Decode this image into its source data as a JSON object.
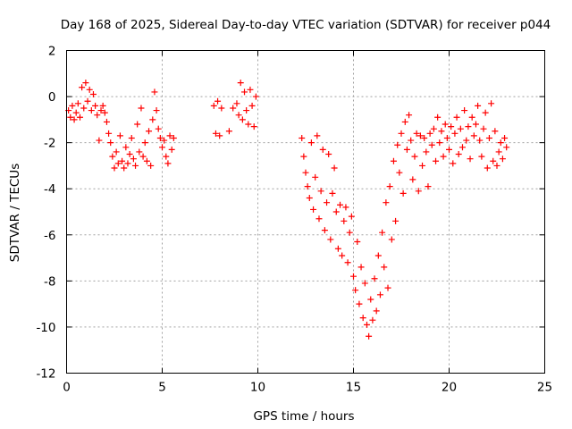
{
  "chart_data": {
    "type": "scatter",
    "title": "Day 168 of 2025, Sidereal Day-to-day VTEC variation (SDTVAR) for receiver p044",
    "xlabel": "GPS time / hours",
    "ylabel": "SDTVAR / TECUs",
    "xlim": [
      0,
      25
    ],
    "ylim": [
      -12,
      2
    ],
    "xticks": [
      0,
      5,
      10,
      15,
      20,
      25
    ],
    "yticks": [
      -12,
      -10,
      -8,
      -6,
      -4,
      -2,
      0,
      2
    ],
    "grid": true,
    "marker": "+",
    "series": [
      {
        "color": "#ff0000",
        "points": [
          [
            0.1,
            -0.6
          ],
          [
            0.2,
            -0.9
          ],
          [
            0.3,
            -0.4
          ],
          [
            0.4,
            -1.0
          ],
          [
            0.5,
            -0.7
          ],
          [
            0.6,
            -0.3
          ],
          [
            0.7,
            -0.9
          ],
          [
            0.8,
            0.4
          ],
          [
            0.9,
            -0.5
          ],
          [
            1.0,
            0.6
          ],
          [
            1.1,
            -0.2
          ],
          [
            1.2,
            0.3
          ],
          [
            1.3,
            -0.6
          ],
          [
            1.4,
            0.1
          ],
          [
            1.5,
            -0.4
          ],
          [
            1.6,
            -0.8
          ],
          [
            1.7,
            -1.9
          ],
          [
            1.8,
            -0.6
          ],
          [
            1.9,
            -0.4
          ],
          [
            2.0,
            -0.7
          ],
          [
            2.1,
            -1.1
          ],
          [
            2.2,
            -1.6
          ],
          [
            2.3,
            -2.0
          ],
          [
            2.4,
            -2.6
          ],
          [
            2.5,
            -3.1
          ],
          [
            2.6,
            -2.4
          ],
          [
            2.7,
            -2.9
          ],
          [
            2.8,
            -1.7
          ],
          [
            2.9,
            -2.8
          ],
          [
            3.0,
            -3.1
          ],
          [
            3.1,
            -2.2
          ],
          [
            3.2,
            -2.9
          ],
          [
            3.3,
            -2.5
          ],
          [
            3.4,
            -1.8
          ],
          [
            3.5,
            -2.7
          ],
          [
            3.6,
            -3.0
          ],
          [
            3.7,
            -1.2
          ],
          [
            3.8,
            -2.4
          ],
          [
            3.9,
            -0.5
          ],
          [
            4.0,
            -2.6
          ],
          [
            4.1,
            -2.0
          ],
          [
            4.2,
            -2.8
          ],
          [
            4.3,
            -1.5
          ],
          [
            4.4,
            -3.0
          ],
          [
            4.5,
            -1.0
          ],
          [
            4.6,
            0.2
          ],
          [
            4.7,
            -0.6
          ],
          [
            4.8,
            -1.4
          ],
          [
            4.9,
            -1.8
          ],
          [
            5.0,
            -2.2
          ],
          [
            5.1,
            -1.9
          ],
          [
            5.2,
            -2.6
          ],
          [
            5.3,
            -2.9
          ],
          [
            5.4,
            -1.7
          ],
          [
            5.5,
            -2.3
          ],
          [
            5.6,
            -1.8
          ],
          [
            7.7,
            -0.4
          ],
          [
            7.8,
            -1.6
          ],
          [
            7.9,
            -0.2
          ],
          [
            8.0,
            -1.7
          ],
          [
            8.1,
            -0.5
          ],
          [
            8.5,
            -1.5
          ],
          [
            8.7,
            -0.5
          ],
          [
            8.9,
            -0.3
          ],
          [
            9.0,
            -0.8
          ],
          [
            9.1,
            0.6
          ],
          [
            9.2,
            -1.0
          ],
          [
            9.3,
            0.2
          ],
          [
            9.4,
            -0.6
          ],
          [
            9.5,
            -1.2
          ],
          [
            9.6,
            0.3
          ],
          [
            9.7,
            -0.4
          ],
          [
            9.8,
            -1.3
          ],
          [
            9.9,
            0.0
          ],
          [
            12.3,
            -1.8
          ],
          [
            12.4,
            -2.6
          ],
          [
            12.5,
            -3.3
          ],
          [
            12.6,
            -3.9
          ],
          [
            12.7,
            -4.4
          ],
          [
            12.8,
            -2.0
          ],
          [
            12.9,
            -4.9
          ],
          [
            13.0,
            -3.5
          ],
          [
            13.1,
            -1.7
          ],
          [
            13.2,
            -5.3
          ],
          [
            13.3,
            -4.1
          ],
          [
            13.4,
            -2.3
          ],
          [
            13.5,
            -5.8
          ],
          [
            13.6,
            -4.6
          ],
          [
            13.7,
            -2.5
          ],
          [
            13.8,
            -6.2
          ],
          [
            13.9,
            -4.2
          ],
          [
            14.0,
            -3.1
          ],
          [
            14.1,
            -5.0
          ],
          [
            14.2,
            -6.6
          ],
          [
            14.3,
            -4.7
          ],
          [
            14.4,
            -6.9
          ],
          [
            14.5,
            -5.4
          ],
          [
            14.6,
            -4.8
          ],
          [
            14.7,
            -7.2
          ],
          [
            14.8,
            -5.9
          ],
          [
            14.9,
            -5.2
          ],
          [
            15.0,
            -7.8
          ],
          [
            15.1,
            -8.4
          ],
          [
            15.2,
            -6.3
          ],
          [
            15.3,
            -9.0
          ],
          [
            15.4,
            -7.4
          ],
          [
            15.5,
            -9.6
          ],
          [
            15.6,
            -8.1
          ],
          [
            15.7,
            -9.9
          ],
          [
            15.8,
            -10.4
          ],
          [
            15.9,
            -8.8
          ],
          [
            16.0,
            -9.7
          ],
          [
            16.1,
            -7.9
          ],
          [
            16.2,
            -9.3
          ],
          [
            16.3,
            -6.9
          ],
          [
            16.4,
            -8.6
          ],
          [
            16.5,
            -5.9
          ],
          [
            16.6,
            -7.4
          ],
          [
            16.7,
            -4.6
          ],
          [
            16.8,
            -8.3
          ],
          [
            16.9,
            -3.9
          ],
          [
            17.0,
            -6.2
          ],
          [
            17.1,
            -2.8
          ],
          [
            17.2,
            -5.4
          ],
          [
            17.3,
            -2.1
          ],
          [
            17.4,
            -3.3
          ],
          [
            17.5,
            -1.6
          ],
          [
            17.6,
            -4.2
          ],
          [
            17.7,
            -1.1
          ],
          [
            17.8,
            -2.3
          ],
          [
            17.9,
            -0.8
          ],
          [
            18.0,
            -1.9
          ],
          [
            18.1,
            -3.6
          ],
          [
            18.2,
            -2.6
          ],
          [
            18.3,
            -1.6
          ],
          [
            18.4,
            -4.1
          ],
          [
            18.5,
            -1.7
          ],
          [
            18.6,
            -3.0
          ],
          [
            18.7,
            -1.8
          ],
          [
            18.8,
            -2.4
          ],
          [
            18.9,
            -3.9
          ],
          [
            19.0,
            -1.6
          ],
          [
            19.1,
            -2.1
          ],
          [
            19.2,
            -1.4
          ],
          [
            19.3,
            -2.8
          ],
          [
            19.4,
            -0.9
          ],
          [
            19.5,
            -2.0
          ],
          [
            19.6,
            -1.5
          ],
          [
            19.7,
            -2.6
          ],
          [
            19.8,
            -1.2
          ],
          [
            19.9,
            -1.8
          ],
          [
            20.0,
            -2.3
          ],
          [
            20.1,
            -1.3
          ],
          [
            20.2,
            -2.9
          ],
          [
            20.3,
            -1.6
          ],
          [
            20.4,
            -0.9
          ],
          [
            20.5,
            -2.5
          ],
          [
            20.6,
            -1.4
          ],
          [
            20.7,
            -2.2
          ],
          [
            20.8,
            -0.6
          ],
          [
            20.9,
            -1.9
          ],
          [
            21.0,
            -1.3
          ],
          [
            21.1,
            -2.7
          ],
          [
            21.2,
            -0.9
          ],
          [
            21.3,
            -1.7
          ],
          [
            21.4,
            -1.2
          ],
          [
            21.5,
            -0.4
          ],
          [
            21.6,
            -1.9
          ],
          [
            21.7,
            -2.6
          ],
          [
            21.8,
            -1.4
          ],
          [
            21.9,
            -0.7
          ],
          [
            22.0,
            -3.1
          ],
          [
            22.1,
            -1.8
          ],
          [
            22.2,
            -0.3
          ],
          [
            22.3,
            -2.8
          ],
          [
            22.4,
            -1.5
          ],
          [
            22.5,
            -3.0
          ],
          [
            22.6,
            -2.4
          ],
          [
            22.7,
            -2.0
          ],
          [
            22.8,
            -2.7
          ],
          [
            22.9,
            -1.8
          ],
          [
            23.0,
            -2.2
          ]
        ]
      }
    ]
  }
}
